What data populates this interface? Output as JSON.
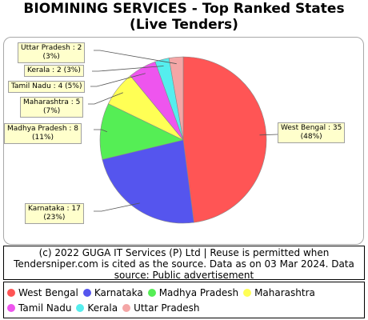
{
  "title_line1": "BIOMINING SERVICES - Top Ranked States",
  "title_line2": "(Live Tenders)",
  "chart_data": {
    "type": "pie",
    "title": "BIOMINING SERVICES - Top Ranked States (Live Tenders)",
    "slices": [
      {
        "label": "West Bengal",
        "value": 35,
        "percent": "48%",
        "color": "#ff5555",
        "callout_line1": "West Bengal : 35",
        "callout_line2": "(48%)"
      },
      {
        "label": "Karnataka",
        "value": 17,
        "percent": "23%",
        "color": "#5555ee",
        "callout_line1": "Karnataka : 17",
        "callout_line2": "(23%)"
      },
      {
        "label": "Madhya Pradesh",
        "value": 8,
        "percent": "11%",
        "color": "#55ee55",
        "callout_line1": "Madhya Pradesh : 8",
        "callout_line2": "(11%)"
      },
      {
        "label": "Maharashtra",
        "value": 5,
        "percent": "7%",
        "color": "#ffff55",
        "callout_line1": "Maharashtra : 5",
        "callout_line2": "(7%)"
      },
      {
        "label": "Tamil Nadu",
        "value": 4,
        "percent": "5%",
        "color": "#ee55ee",
        "callout_line1": "Tamil Nadu : 4 (5%)",
        "callout_line2": ""
      },
      {
        "label": "Kerala",
        "value": 2,
        "percent": "3%",
        "color": "#55eeee",
        "callout_line1": "Kerala : 2 (3%)",
        "callout_line2": ""
      },
      {
        "label": "Uttar Pradesh",
        "value": 2,
        "percent": "3%",
        "color": "#f4a6a6",
        "callout_line1": "Uttar Pradesh : 2",
        "callout_line2": "(3%)"
      }
    ],
    "legend_position": "bottom"
  },
  "footer_text": "(c) 2022 GUGA IT Services (P) Ltd | Reuse is permitted when Tendersniper.com is cited as the source. Data as on 03 Mar 2024. Data source: Public advertisement"
}
